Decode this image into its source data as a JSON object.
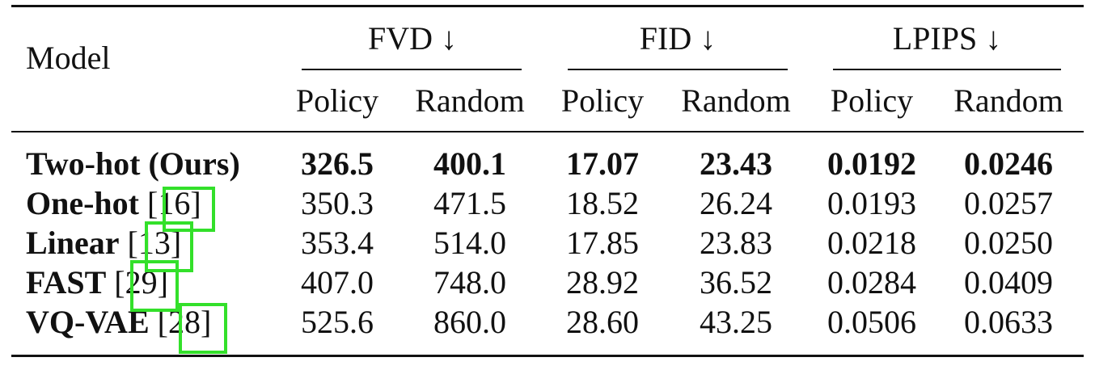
{
  "table": {
    "header": {
      "model": "Model",
      "groups": [
        {
          "label": "FVD ↓",
          "subheaders": [
            "Policy",
            "Random"
          ]
        },
        {
          "label": "FID ↓",
          "subheaders": [
            "Policy",
            "Random"
          ]
        },
        {
          "label": "LPIPS ↓",
          "subheaders": [
            "Policy",
            "Random"
          ]
        }
      ]
    },
    "rows": [
      {
        "model": "Two-hot (Ours)",
        "bold": true,
        "values": [
          "326.5",
          "400.1",
          "17.07",
          "23.43",
          "0.0192",
          "0.0246"
        ]
      },
      {
        "model": "One-hot",
        "cite": "[16]",
        "values": [
          "350.3",
          "471.5",
          "18.52",
          "26.24",
          "0.0193",
          "0.0257"
        ]
      },
      {
        "model": "Linear",
        "cite": "[13]",
        "values": [
          "353.4",
          "514.0",
          "17.85",
          "23.83",
          "0.0218",
          "0.0250"
        ]
      },
      {
        "model": "FAST",
        "cite": "[29]",
        "values": [
          "407.0",
          "748.0",
          "28.92",
          "36.52",
          "0.0284",
          "0.0409"
        ]
      },
      {
        "model": "VQ-VAE",
        "cite": "[28]",
        "values": [
          "525.6",
          "860.0",
          "28.60",
          "43.25",
          "0.0506",
          "0.0633"
        ]
      }
    ]
  }
}
